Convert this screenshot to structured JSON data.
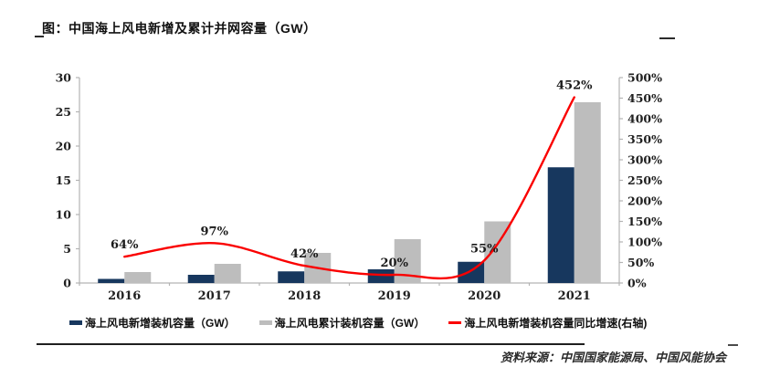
{
  "title": "图：中国海上风电新增及累计并网容量（GW）",
  "source": "资料来源：中国国家能源局、中国风能协会",
  "colors": {
    "new_bar": "#17375e",
    "cum_bar": "#bdbdbd",
    "growth_line": "#fa0000",
    "axis": "#b3b3b3",
    "tick_text": "#212121",
    "label_text": "#1a1a1a"
  },
  "chart_data": {
    "type": "bar",
    "title": "中国海上风电新增及累计并网容量（GW）",
    "categories": [
      "2016",
      "2017",
      "2018",
      "2019",
      "2020",
      "2021"
    ],
    "series": [
      {
        "name": "海上风电新增装机容量（GW）",
        "type": "bar",
        "axis": "left",
        "color": "#17375e",
        "values": [
          0.6,
          1.2,
          1.7,
          2.0,
          3.1,
          16.9
        ]
      },
      {
        "name": "海上风电累计装机容量（GW）",
        "type": "bar",
        "axis": "left",
        "color": "#bdbdbd",
        "values": [
          1.6,
          2.8,
          4.4,
          6.4,
          9.0,
          26.4
        ]
      },
      {
        "name": "海上风电新增装机容量同比增速(右轴)",
        "type": "line",
        "axis": "right",
        "color": "#fa0000",
        "smooth": true,
        "values": [
          64,
          97,
          42,
          20,
          55,
          452
        ],
        "point_labels": [
          "64%",
          "97%",
          "42%",
          "20%",
          "55%",
          "452%"
        ]
      }
    ],
    "left_axis": {
      "min": 0,
      "max": 30,
      "step": 5,
      "tick_labels": [
        "0",
        "5",
        "10",
        "15",
        "20",
        "25",
        "30"
      ]
    },
    "right_axis": {
      "min": 0,
      "max": 500,
      "step": 50,
      "tick_labels": [
        "0%",
        "50%",
        "100%",
        "150%",
        "200%",
        "250%",
        "300%",
        "350%",
        "400%",
        "450%",
        "500%"
      ]
    },
    "grid": false,
    "legend_position": "bottom"
  }
}
